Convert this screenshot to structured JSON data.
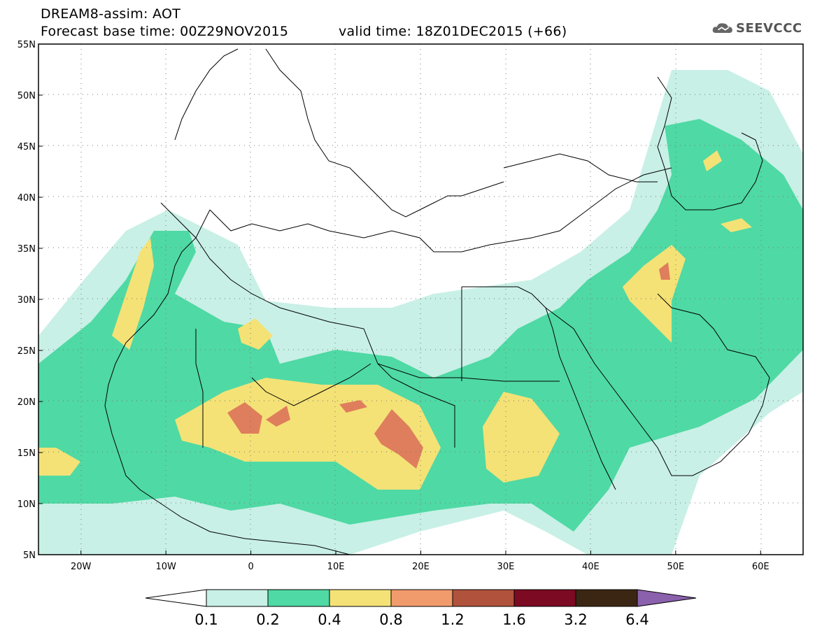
{
  "header": {
    "title": "DREAM8-assim: AOT",
    "base_time": "Forecast base time: 00Z29NOV2015",
    "valid_time": "valid time: 18Z01DEC2015 (+66)"
  },
  "logo": {
    "text": "SEEVCCC",
    "icon": "cloud-icon"
  },
  "map": {
    "lat_labels": [
      "55N",
      "50N",
      "45N",
      "40N",
      "35N",
      "30N",
      "25N",
      "20N",
      "15N",
      "10N",
      "5N"
    ],
    "lon_labels": [
      "20W",
      "10W",
      "0",
      "10E",
      "20E",
      "30E",
      "40E",
      "50E",
      "60E"
    ],
    "lat_range": [
      5,
      55
    ],
    "lon_range": [
      -25,
      65
    ],
    "grid": "dotted"
  },
  "colorbar": {
    "labels": [
      "0.1",
      "0.2",
      "0.4",
      "0.8",
      "1.2",
      "1.6",
      "3.2",
      "6.4"
    ],
    "colors": [
      "#c8f0e6",
      "#4fd9a4",
      "#f4e276",
      "#f19b6c",
      "#b0523c",
      "#7c0a23",
      "#3b2613",
      "#8b60ad"
    ]
  }
}
